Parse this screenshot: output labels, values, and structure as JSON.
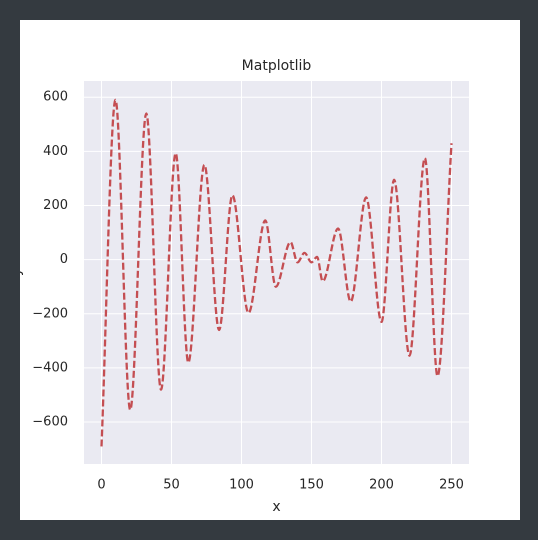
{
  "chart_data": {
    "type": "line",
    "title": "Matplotlib",
    "xlabel": "x",
    "ylabel": "y",
    "x": [
      0,
      10,
      20.5,
      32,
      42.5,
      53,
      62,
      73.5,
      84,
      93.5,
      105,
      117,
      124.5,
      135,
      140,
      145,
      150,
      154,
      158,
      169,
      178,
      189,
      200,
      209,
      220,
      231,
      240,
      250
    ],
    "series": [
      {
        "color": "#c44e52",
        "values": [
          -690,
          590,
          -555,
          540,
          -480,
          393,
          -380,
          350,
          -260,
          238,
          -197,
          145,
          -100,
          65,
          -10,
          25,
          -10,
          10,
          -80,
          115,
          -155,
          230,
          -230,
          295,
          -355,
          375,
          -430,
          430
        ]
      }
    ],
    "xlim": [
      -12.5,
      262.5
    ],
    "xticks": [
      0,
      50,
      100,
      150,
      200,
      250
    ],
    "ylim": [
      -755,
      660
    ],
    "yticks": [
      {
        "value": -600,
        "label": "−600"
      },
      {
        "value": -400,
        "label": "−400"
      },
      {
        "value": -200,
        "label": "−200"
      },
      0,
      200,
      400,
      600
    ],
    "grid": true,
    "linestyle": "dashed"
  }
}
